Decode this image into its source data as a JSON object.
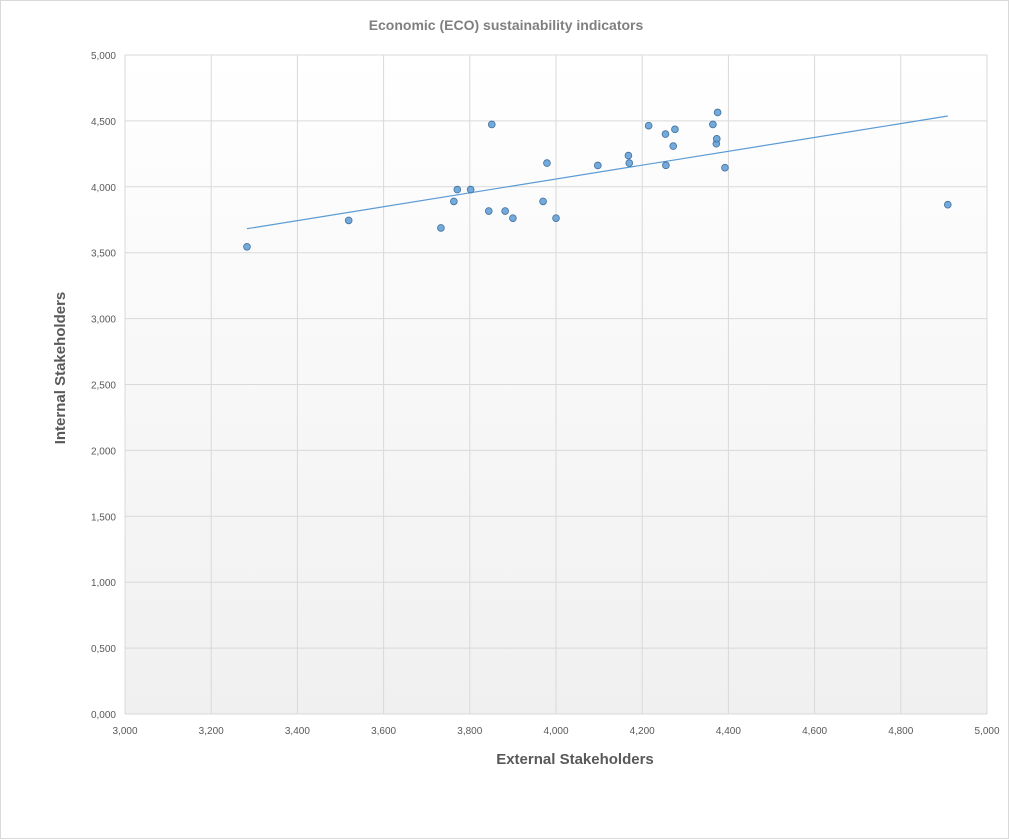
{
  "chart_data": {
    "type": "scatter",
    "title": "Economic (ECO) sustainability  indicators",
    "xlabel": "External Stakeholders",
    "ylabel": "Internal Stakeholders",
    "xlim": [
      3000,
      5000
    ],
    "ylim": [
      0,
      5000
    ],
    "x_ticks": [
      3000,
      3200,
      3400,
      3600,
      3800,
      4000,
      4200,
      4400,
      4600,
      4800,
      5000
    ],
    "y_ticks": [
      0,
      500,
      1000,
      1500,
      2000,
      2500,
      3000,
      3500,
      4000,
      4500,
      5000
    ],
    "x_tick_labels": [
      "3,000",
      "3,200",
      "3,400",
      "3,600",
      "3,800",
      "4,000",
      "4,200",
      "4,400",
      "4,600",
      "4,800",
      "5,000"
    ],
    "y_tick_labels": [
      "0,000",
      "0,500",
      "1,000",
      "1,500",
      "2,000",
      "2,500",
      "3,000",
      "3,500",
      "4,000",
      "4,500",
      "5,000"
    ],
    "grid": true,
    "legend": "none",
    "marker_color": "#5b9bd5",
    "trendline_color": "#5b9bd5",
    "series": [
      {
        "points": [
          {
            "x": 3283,
            "y": 3545
          },
          {
            "x": 3519,
            "y": 3745
          },
          {
            "x": 3733,
            "y": 3688
          },
          {
            "x": 3763,
            "y": 3889
          },
          {
            "x": 3771,
            "y": 3979
          },
          {
            "x": 3802,
            "y": 3979
          },
          {
            "x": 3844,
            "y": 3816
          },
          {
            "x": 3851,
            "y": 4473
          },
          {
            "x": 3882,
            "y": 3816
          },
          {
            "x": 3900,
            "y": 3762
          },
          {
            "x": 3970,
            "y": 3889
          },
          {
            "x": 3979,
            "y": 4180
          },
          {
            "x": 4000,
            "y": 3762
          },
          {
            "x": 4097,
            "y": 4162
          },
          {
            "x": 4168,
            "y": 4237
          },
          {
            "x": 4170,
            "y": 4180
          },
          {
            "x": 4215,
            "y": 4464
          },
          {
            "x": 4254,
            "y": 4400
          },
          {
            "x": 4255,
            "y": 4163
          },
          {
            "x": 4272,
            "y": 4309
          },
          {
            "x": 4276,
            "y": 4436
          },
          {
            "x": 4364,
            "y": 4473
          },
          {
            "x": 4372,
            "y": 4327
          },
          {
            "x": 4373,
            "y": 4364
          },
          {
            "x": 4375,
            "y": 4564
          },
          {
            "x": 4392,
            "y": 4145
          },
          {
            "x": 4909,
            "y": 3864
          }
        ],
        "trendline": {
          "type": "linear",
          "from": {
            "x": 3283,
            "y": 3682
          },
          "to": {
            "x": 4909,
            "y": 4537
          }
        }
      }
    ]
  }
}
